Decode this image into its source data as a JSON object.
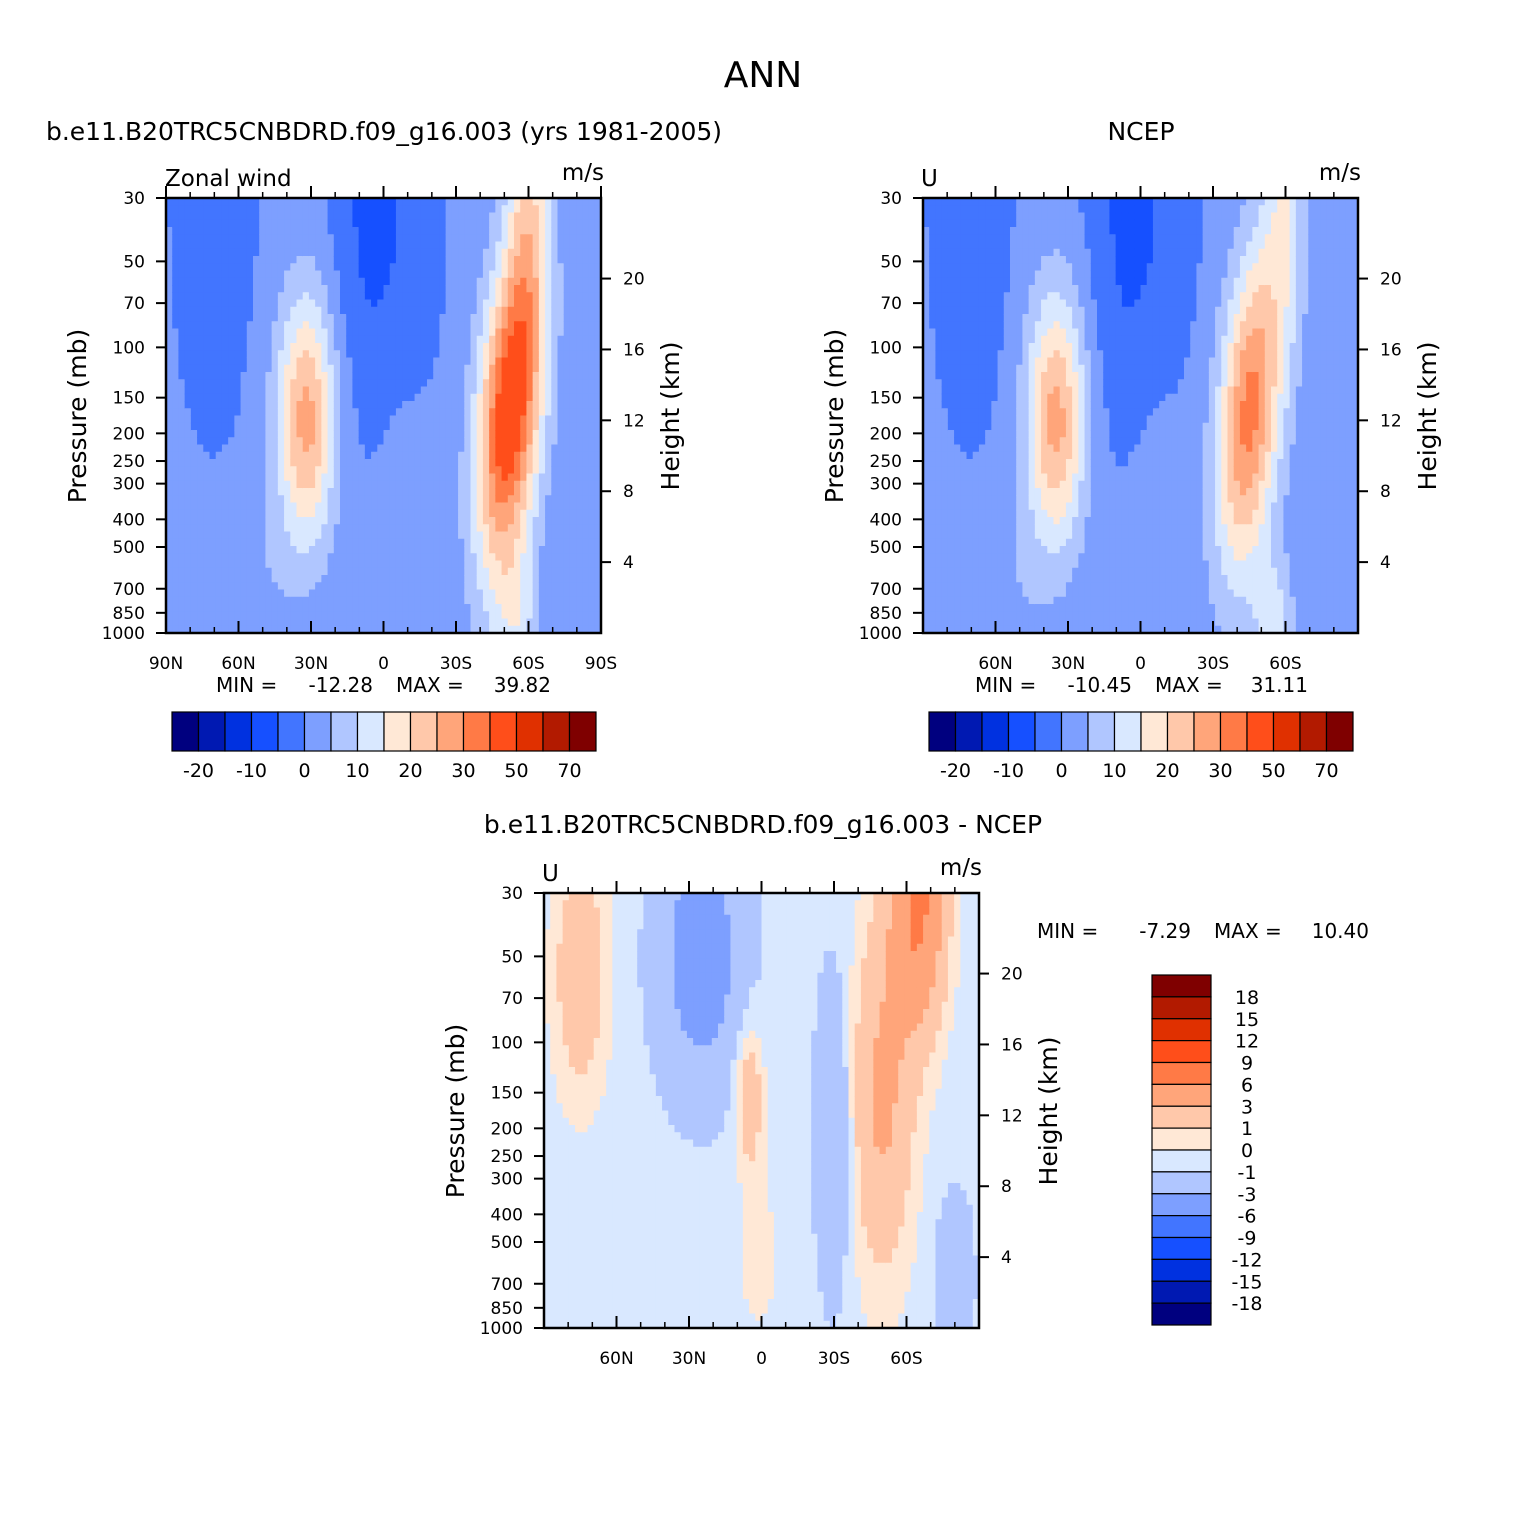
{
  "figure": {
    "title": "ANN"
  },
  "palette": {
    "full": [
      "#00007f",
      "#0019b2",
      "#0031e0",
      "#1650ff",
      "#4275ff",
      "#7d9fff",
      "#b0c6ff",
      "#d9e8ff",
      "#ffe8d6",
      "#ffc8aa",
      "#ffa57a",
      "#ff7a46",
      "#ff4e1a",
      "#e03000",
      "#b21a00",
      "#7f0000"
    ],
    "diff": [
      "#7f0000",
      "#b21a00",
      "#e03000",
      "#ff4e1a",
      "#ff7a46",
      "#ffa57a",
      "#ffc8aa",
      "#ffe8d6",
      "#d9e8ff",
      "#b0c6ff",
      "#7d9fff",
      "#4275ff",
      "#1650ff",
      "#0031e0",
      "#0019b2",
      "#00007f"
    ]
  },
  "chart_data": [
    {
      "type": "heatmap",
      "name": "model",
      "title": "b.e11.B20TRC5CNBDRD.f09_g16.003 (yrs 1981-2005)",
      "left_label": "Zonal wind",
      "units": "m/s",
      "xlabel": "",
      "ylabel": "Pressure (mb)",
      "y2label": "Height (km)",
      "xlim": [
        90,
        -90
      ],
      "x_ticks": [
        90,
        60,
        30,
        0,
        -30,
        -60,
        -90
      ],
      "x_tick_labels": [
        "90N",
        "60N",
        "30N",
        "0",
        "30S",
        "60S",
        "90S"
      ],
      "ylim": [
        1000,
        30
      ],
      "y_scale": "log",
      "y_ticks": [
        30,
        50,
        70,
        100,
        150,
        200,
        250,
        300,
        400,
        500,
        700,
        850,
        1000
      ],
      "y_tick_labels": [
        "30",
        "50",
        "70",
        "100",
        "150",
        "200",
        "250",
        "300",
        "400",
        "500",
        "700",
        "850",
        "1000"
      ],
      "y2_ticks_km": [
        4,
        8,
        12,
        16,
        20
      ],
      "y2_tick_labels": [
        "4",
        "8",
        "12",
        "16",
        "20"
      ],
      "stats": {
        "min_label": "MIN =",
        "min": "-12.28",
        "max_label": "MAX =",
        "max": "39.82"
      },
      "levels": [
        -25,
        -20,
        -15,
        -10,
        -5,
        0,
        5,
        10,
        15,
        20,
        25,
        30,
        40,
        50,
        60,
        70
      ],
      "colorbar_labels": [
        "-20",
        "-10",
        "0",
        "10",
        "20",
        "30",
        "50",
        "70"
      ],
      "sh_jet_lat": -52,
      "sh_jet_peak": 40,
      "nh_jet_lat": 32,
      "nh_jet_peak": 26
    },
    {
      "type": "heatmap",
      "name": "obs",
      "title": "NCEP",
      "left_label": "U",
      "units": "m/s",
      "xlabel": "",
      "ylabel": "Pressure (mb)",
      "y2label": "Height (km)",
      "xlim": [
        90,
        -90
      ],
      "x_ticks": [
        60,
        30,
        0,
        -30,
        -60
      ],
      "x_tick_labels": [
        "60N",
        "30N",
        "0",
        "30S",
        "60S"
      ],
      "ylim": [
        1000,
        30
      ],
      "y_scale": "log",
      "y_ticks": [
        30,
        50,
        70,
        100,
        150,
        200,
        250,
        300,
        400,
        500,
        700,
        850,
        1000
      ],
      "y_tick_labels": [
        "30",
        "50",
        "70",
        "100",
        "150",
        "200",
        "250",
        "300",
        "400",
        "500",
        "700",
        "850",
        "1000"
      ],
      "y2_ticks_km": [
        4,
        8,
        12,
        16,
        20
      ],
      "y2_tick_labels": [
        "4",
        "8",
        "12",
        "16",
        "20"
      ],
      "stats": {
        "min_label": "MIN =",
        "min": "-10.45",
        "max_label": "MAX =",
        "max": "31.11"
      },
      "levels": [
        -25,
        -20,
        -15,
        -10,
        -5,
        0,
        5,
        10,
        15,
        20,
        25,
        30,
        40,
        50,
        60,
        70
      ],
      "colorbar_labels": [
        "-20",
        "-10",
        "0",
        "10",
        "20",
        "30",
        "50",
        "70"
      ],
      "sh_jet_lat": -45,
      "sh_jet_peak": 31,
      "nh_jet_lat": 35,
      "nh_jet_peak": 26
    },
    {
      "type": "heatmap",
      "name": "diff",
      "title": "b.e11.B20TRC5CNBDRD.f09_g16.003 - NCEP",
      "left_label": "U",
      "units": "m/s",
      "xlabel": "",
      "ylabel": "Pressure (mb)",
      "y2label": "Height (km)",
      "xlim": [
        90,
        -90
      ],
      "x_ticks": [
        60,
        30,
        0,
        -30,
        -60
      ],
      "x_tick_labels": [
        "60N",
        "30N",
        "0",
        "30S",
        "60S"
      ],
      "ylim": [
        1000,
        30
      ],
      "y_scale": "log",
      "y_ticks": [
        30,
        50,
        70,
        100,
        150,
        200,
        250,
        300,
        400,
        500,
        700,
        850,
        1000
      ],
      "y_tick_labels": [
        "30",
        "50",
        "70",
        "100",
        "150",
        "200",
        "250",
        "300",
        "400",
        "500",
        "700",
        "850",
        "1000"
      ],
      "y2_ticks_km": [
        4,
        8,
        12,
        16,
        20
      ],
      "y2_tick_labels": [
        "4",
        "8",
        "12",
        "16",
        "20"
      ],
      "stats": {
        "min_label": "MIN =",
        "min": "-7.29",
        "max_label": "MAX =",
        "max": "10.40"
      },
      "levels": [
        -18,
        -15,
        -12,
        -9,
        -6,
        -3,
        -1,
        0,
        1,
        3,
        6,
        9,
        12,
        15,
        18
      ],
      "colorbar_labels": [
        "18",
        "15",
        "12",
        "9",
        "6",
        "3",
        "1",
        "0",
        "-1",
        "-3",
        "-6",
        "-9",
        "-12",
        "-15",
        "-18"
      ]
    }
  ]
}
